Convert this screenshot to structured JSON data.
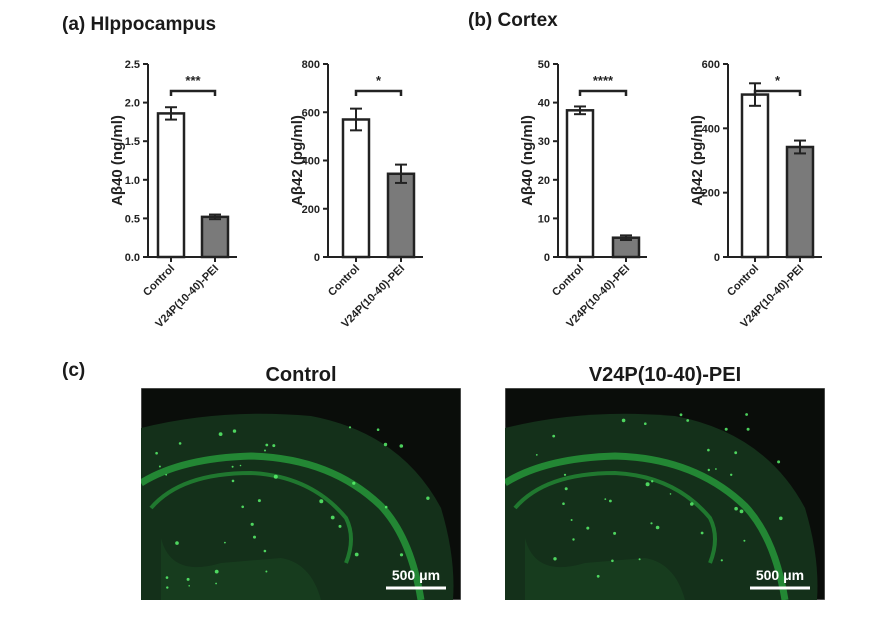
{
  "panels": {
    "a_title": "(a) HIppocampus",
    "b_title": "(b) Cortex",
    "c_label": "(c)"
  },
  "chart_data": [
    {
      "type": "bar",
      "panel": "a",
      "categories": [
        "Control",
        "V24P(10-40)-PEI"
      ],
      "values": [
        1.86,
        0.52
      ],
      "errors": [
        0.08,
        0.03
      ],
      "ylabel": "Aβ40 (ng/ml)",
      "ylim": [
        0,
        2.5
      ],
      "yticks": [
        "0.0",
        "0.5",
        "1.0",
        "1.5",
        "2.0",
        "2.5"
      ],
      "significance": "***",
      "colors": [
        "#ffffff",
        "#7a7a7a"
      ]
    },
    {
      "type": "bar",
      "panel": "a",
      "categories": [
        "Control",
        "V24P(10-40)-PEI"
      ],
      "values": [
        570,
        345
      ],
      "errors": [
        45,
        38
      ],
      "ylabel": "Aβ42 (pg/ml)",
      "ylim": [
        0,
        800
      ],
      "yticks": [
        "0",
        "200",
        "400",
        "600",
        "800"
      ],
      "significance": "*",
      "colors": [
        "#ffffff",
        "#7a7a7a"
      ]
    },
    {
      "type": "bar",
      "panel": "b",
      "categories": [
        "Control",
        "V24P(10-40)-PEI"
      ],
      "values": [
        38,
        5
      ],
      "errors": [
        1,
        0.6
      ],
      "ylabel": "Aβ40 (ng/ml)",
      "ylim": [
        0,
        50
      ],
      "yticks": [
        "0",
        "10",
        "20",
        "30",
        "40",
        "50"
      ],
      "significance": "****",
      "colors": [
        "#ffffff",
        "#7a7a7a"
      ]
    },
    {
      "type": "bar",
      "panel": "b",
      "categories": [
        "Control",
        "V24P(10-40)-PEI"
      ],
      "values": [
        505,
        342
      ],
      "errors": [
        35,
        20
      ],
      "ylabel": "Aβ42 (pg/ml)",
      "ylim": [
        0,
        600
      ],
      "yticks": [
        "0",
        "200",
        "400",
        "600"
      ],
      "significance": "*",
      "colors": [
        "#ffffff",
        "#7a7a7a"
      ]
    }
  ],
  "micrographs": [
    {
      "title": "Control",
      "scale_bar": "500 μm",
      "stain_color": "#2fd04a"
    },
    {
      "title": "V24P(10-40)-PEI",
      "scale_bar": "500 μm",
      "stain_color": "#2fd04a"
    }
  ]
}
